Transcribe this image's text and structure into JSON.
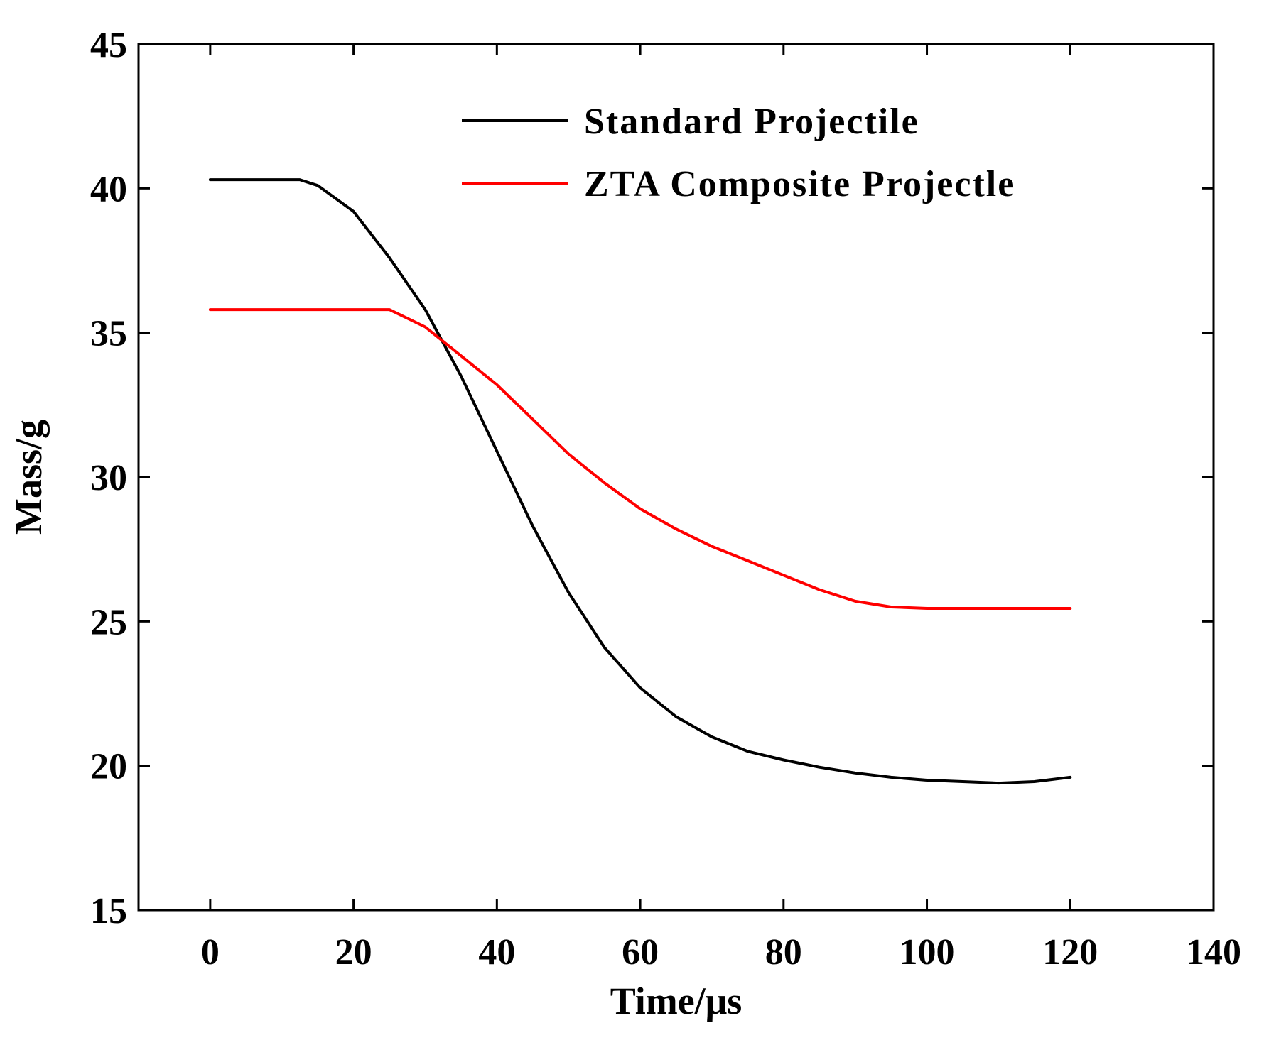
{
  "chart_data": {
    "type": "line",
    "title": "",
    "xlabel": "Time/μs",
    "ylabel": "Mass/g",
    "xlim": [
      -10,
      140
    ],
    "ylim": [
      15,
      45
    ],
    "xticks": [
      0,
      20,
      40,
      60,
      80,
      100,
      120,
      140
    ],
    "yticks": [
      15,
      20,
      25,
      30,
      35,
      40,
      45
    ],
    "grid": false,
    "legend_position": "top-right",
    "series": [
      {
        "name": "Standard Projectile",
        "color": "#000000",
        "x": [
          0,
          5,
          10,
          12.5,
          15,
          20,
          25,
          30,
          35,
          40,
          45,
          50,
          55,
          60,
          65,
          70,
          75,
          80,
          85,
          90,
          95,
          100,
          105,
          110,
          115,
          120
        ],
        "y": [
          40.3,
          40.3,
          40.3,
          40.3,
          40.1,
          39.2,
          37.6,
          35.8,
          33.5,
          30.9,
          28.3,
          26.0,
          24.1,
          22.7,
          21.7,
          21.0,
          20.5,
          20.2,
          19.95,
          19.75,
          19.6,
          19.5,
          19.45,
          19.4,
          19.45,
          19.6
        ]
      },
      {
        "name": "ZTA Composite Projectle",
        "color": "#ff0000",
        "x": [
          0,
          5,
          10,
          15,
          20,
          25,
          30,
          35,
          40,
          45,
          50,
          55,
          60,
          65,
          70,
          75,
          80,
          85,
          90,
          95,
          100,
          105,
          110,
          115,
          120
        ],
        "y": [
          35.8,
          35.8,
          35.8,
          35.8,
          35.8,
          35.8,
          35.2,
          34.2,
          33.2,
          32.0,
          30.8,
          29.8,
          28.9,
          28.2,
          27.6,
          27.1,
          26.6,
          26.1,
          25.7,
          25.5,
          25.45,
          25.45,
          25.45,
          25.45,
          25.45
        ]
      }
    ]
  }
}
